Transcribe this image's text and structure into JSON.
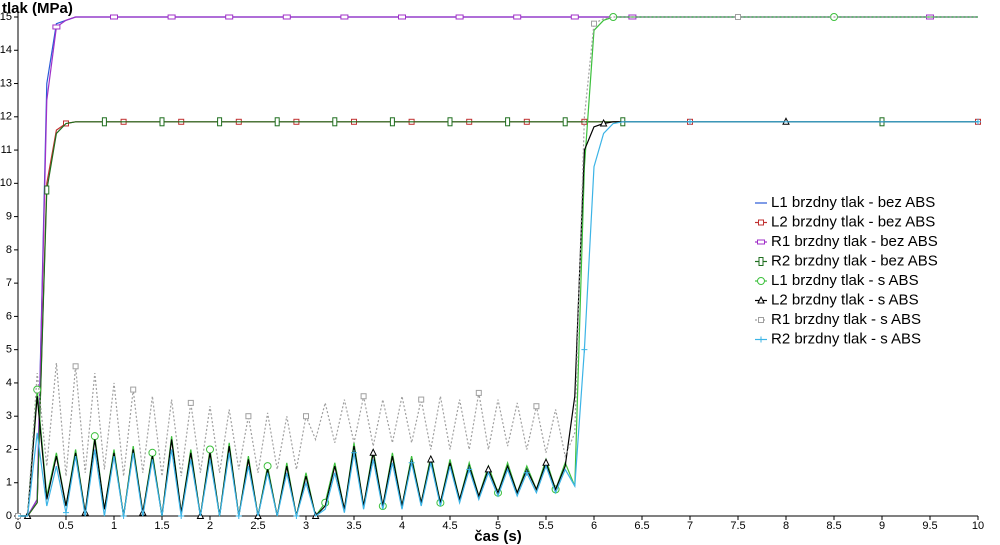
{
  "chart_data": {
    "type": "line",
    "y_label": "tlak (MPa)",
    "x_label": "čas (s)",
    "x": [
      0,
      0.1,
      0.2,
      0.3,
      0.4,
      0.5,
      0.6,
      0.7,
      0.8,
      0.9,
      1,
      1.1,
      1.2,
      1.3,
      1.4,
      1.5,
      1.6,
      1.7,
      1.8,
      1.9,
      2,
      2.1,
      2.2,
      2.3,
      2.4,
      2.5,
      2.6,
      2.7,
      2.8,
      2.9,
      3,
      3.1,
      3.2,
      3.3,
      3.4,
      3.5,
      3.6,
      3.7,
      3.8,
      3.9,
      4,
      4.1,
      4.2,
      4.3,
      4.4,
      4.5,
      4.6,
      4.7,
      4.8,
      4.9,
      5,
      5.1,
      5.2,
      5.3,
      5.4,
      5.5,
      5.6,
      5.7,
      5.8,
      5.9,
      6,
      6.1,
      6.2,
      6.3,
      6.4,
      7,
      7.5,
      8,
      8.5,
      9,
      9.5,
      10
    ],
    "xlim": [
      0,
      10
    ],
    "xticks": [
      0,
      0.5,
      1,
      1.5,
      2,
      2.5,
      3,
      3.5,
      4,
      4.5,
      5,
      5.5,
      6,
      6.5,
      7,
      7.5,
      8,
      8.5,
      9,
      9.5,
      10
    ],
    "ylim": [
      0,
      15
    ],
    "yticks": [
      0,
      1,
      2,
      3,
      4,
      5,
      6,
      7,
      8,
      9,
      10,
      11,
      12,
      13,
      14,
      15
    ],
    "legend": "right",
    "series": [
      {
        "name": "L1 brzdny tlak - bez ABS",
        "color": "#2a5bd7",
        "marker": "none",
        "values": [
          0,
          0,
          0.5,
          13,
          14.8,
          14.9,
          15,
          15,
          15,
          15,
          15,
          15,
          15,
          15,
          15,
          15,
          15,
          15,
          15,
          15,
          15,
          15,
          15,
          15,
          15,
          15,
          15,
          15,
          15,
          15,
          15,
          15,
          15,
          15,
          15,
          15,
          15,
          15,
          15,
          15,
          15,
          15,
          15,
          15,
          15,
          15,
          15,
          15,
          15,
          15,
          15,
          15,
          15,
          15,
          15,
          15,
          15,
          15,
          15,
          15,
          15,
          15,
          15,
          15,
          15,
          15,
          15,
          15,
          15,
          15,
          15,
          15
        ]
      },
      {
        "name": "L2 brzdny tlak - bez ABS",
        "color": "#c03030",
        "marker": "square",
        "values": [
          0,
          0,
          0.4,
          10,
          11.6,
          11.8,
          11.85,
          11.85,
          11.85,
          11.85,
          11.85,
          11.85,
          11.85,
          11.85,
          11.85,
          11.85,
          11.85,
          11.85,
          11.85,
          11.85,
          11.85,
          11.85,
          11.85,
          11.85,
          11.85,
          11.85,
          11.85,
          11.85,
          11.85,
          11.85,
          11.85,
          11.85,
          11.85,
          11.85,
          11.85,
          11.85,
          11.85,
          11.85,
          11.85,
          11.85,
          11.85,
          11.85,
          11.85,
          11.85,
          11.85,
          11.85,
          11.85,
          11.85,
          11.85,
          11.85,
          11.85,
          11.85,
          11.85,
          11.85,
          11.85,
          11.85,
          11.85,
          11.85,
          11.85,
          11.85,
          11.85,
          11.85,
          11.85,
          11.85,
          11.85,
          11.85,
          11.85,
          11.85,
          11.85,
          11.85,
          11.85,
          11.85
        ]
      },
      {
        "name": "R1 brzdny tlak - bez ABS",
        "color": "#a030c8",
        "marker": "wide",
        "values": [
          0,
          0,
          0.5,
          12.5,
          14.7,
          14.9,
          15,
          15,
          15,
          15,
          15,
          15,
          15,
          15,
          15,
          15,
          15,
          15,
          15,
          15,
          15,
          15,
          15,
          15,
          15,
          15,
          15,
          15,
          15,
          15,
          15,
          15,
          15,
          15,
          15,
          15,
          15,
          15,
          15,
          15,
          15,
          15,
          15,
          15,
          15,
          15,
          15,
          15,
          15,
          15,
          15,
          15,
          15,
          15,
          15,
          15,
          15,
          15,
          15,
          15,
          15,
          15,
          15,
          15,
          15,
          15,
          15,
          15,
          15,
          15,
          15,
          15
        ]
      },
      {
        "name": "R2 brzdny tlak - bez ABS",
        "color": "#1e6e1e",
        "marker": "tall",
        "values": [
          0,
          0,
          0.4,
          9.8,
          11.5,
          11.8,
          11.85,
          11.85,
          11.85,
          11.85,
          11.85,
          11.85,
          11.85,
          11.85,
          11.85,
          11.85,
          11.85,
          11.85,
          11.85,
          11.85,
          11.85,
          11.85,
          11.85,
          11.85,
          11.85,
          11.85,
          11.85,
          11.85,
          11.85,
          11.85,
          11.85,
          11.85,
          11.85,
          11.85,
          11.85,
          11.85,
          11.85,
          11.85,
          11.85,
          11.85,
          11.85,
          11.85,
          11.85,
          11.85,
          11.85,
          11.85,
          11.85,
          11.85,
          11.85,
          11.85,
          11.85,
          11.85,
          11.85,
          11.85,
          11.85,
          11.85,
          11.85,
          11.85,
          11.85,
          11.85,
          11.85,
          11.85,
          11.85,
          11.85,
          11.85,
          11.85,
          11.85,
          11.85,
          11.85,
          11.85,
          11.85,
          11.85
        ]
      },
      {
        "name": "L1 brzdny tlak - s ABS",
        "color": "#3cc03c",
        "marker": "circle",
        "values": [
          0,
          0,
          3.8,
          0.6,
          1.9,
          0.3,
          2.0,
          0.1,
          2.4,
          0.2,
          2.0,
          0.0,
          2.1,
          0.1,
          1.9,
          0.0,
          2.4,
          0.1,
          2.0,
          0.0,
          2.0,
          0.0,
          2.2,
          0.0,
          1.8,
          0.0,
          1.5,
          0.0,
          1.6,
          0.0,
          1.3,
          0.0,
          0.4,
          1.6,
          0.2,
          2.2,
          0.3,
          2.0,
          0.3,
          1.9,
          0.3,
          1.8,
          0.4,
          1.8,
          0.4,
          1.7,
          0.5,
          1.6,
          0.6,
          1.5,
          0.7,
          1.6,
          0.7,
          1.5,
          0.8,
          1.7,
          0.8,
          1.6,
          0.9,
          10.5,
          14.6,
          14.9,
          15,
          15,
          15,
          15,
          15,
          15,
          15,
          15,
          15,
          15
        ]
      },
      {
        "name": "L2 brzdny tlak - s ABS",
        "color": "#000000",
        "marker": "triangle",
        "values": [
          0,
          0,
          3.6,
          0.5,
          1.8,
          0.3,
          1.9,
          0.1,
          2.3,
          0.2,
          1.9,
          0.0,
          2.0,
          0.1,
          1.8,
          0.0,
          2.3,
          0.1,
          1.9,
          0.0,
          1.9,
          0.0,
          2.1,
          0.0,
          1.7,
          0.0,
          1.4,
          0.0,
          1.5,
          0.0,
          1.2,
          0.0,
          0.3,
          1.5,
          0.2,
          2.1,
          0.3,
          1.9,
          0.3,
          1.8,
          0.3,
          1.7,
          0.4,
          1.7,
          0.4,
          1.6,
          0.5,
          1.5,
          0.6,
          1.4,
          0.7,
          1.5,
          0.7,
          1.4,
          0.8,
          1.6,
          0.8,
          1.5,
          3.6,
          11,
          11.7,
          11.8,
          11.85,
          11.85,
          11.85,
          11.85,
          11.85,
          11.85,
          11.85,
          11.85,
          11.85,
          11.85
        ]
      },
      {
        "name": "R1 brzdny tlak - s ABS",
        "color": "#a0a0a0",
        "marker": "square",
        "dashed": true,
        "values": [
          0,
          0,
          4.3,
          1.5,
          4.6,
          1.2,
          4.5,
          1.3,
          4.3,
          1.4,
          4.0,
          1.2,
          3.8,
          1.3,
          3.6,
          1.2,
          3.5,
          1.2,
          3.4,
          1.3,
          3.3,
          1.3,
          3.2,
          1.4,
          3.0,
          1.3,
          3.1,
          1.4,
          3.0,
          1.4,
          3.0,
          2.3,
          3.4,
          2.2,
          3.5,
          2.2,
          3.6,
          2.1,
          3.5,
          2.2,
          3.6,
          2.2,
          3.5,
          2.0,
          3.6,
          2.0,
          3.5,
          2.0,
          3.7,
          2.0,
          3.5,
          2.1,
          3.4,
          2.0,
          3.3,
          1.9,
          3.2,
          1.8,
          2.5,
          12,
          14.8,
          14.95,
          15,
          15,
          15,
          15,
          15,
          15,
          15,
          15,
          15,
          15
        ]
      },
      {
        "name": "R2 brzdny tlak - s ABS",
        "color": "#3cb4e6",
        "marker": "plus",
        "values": [
          0,
          0,
          2.5,
          0.3,
          1.5,
          0.1,
          1.8,
          0.0,
          2.0,
          0.0,
          1.8,
          0.0,
          1.9,
          0.0,
          1.7,
          0.0,
          2.0,
          0.0,
          1.7,
          0.0,
          1.7,
          0.0,
          1.9,
          0.0,
          1.5,
          0.0,
          1.3,
          0.0,
          1.3,
          0.0,
          1.0,
          0.0,
          0.2,
          1.3,
          0.1,
          1.9,
          0.2,
          1.7,
          0.2,
          1.6,
          0.2,
          1.6,
          0.3,
          1.6,
          0.3,
          1.5,
          0.4,
          1.4,
          0.5,
          1.3,
          0.6,
          1.4,
          0.6,
          1.3,
          0.7,
          1.5,
          0.7,
          1.4,
          0.9,
          5,
          10.5,
          11.5,
          11.8,
          11.85,
          11.85,
          11.85,
          11.85,
          11.85,
          11.85,
          11.85,
          11.85,
          11.85
        ]
      }
    ]
  }
}
